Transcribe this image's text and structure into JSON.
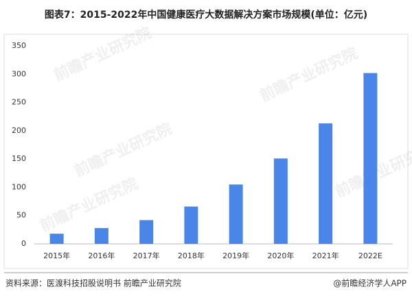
{
  "chart_data": {
    "type": "bar",
    "title": "图表7：2015-2022年中国健康医疗大数据解决方案市场规模(单位：亿元)",
    "categories": [
      "2015年",
      "2016年",
      "2017年",
      "2018年",
      "2019年",
      "2020年",
      "2021年",
      "2022E"
    ],
    "values": [
      18,
      28,
      42,
      66,
      105,
      151,
      213,
      302
    ],
    "color": "#4a86e8",
    "ylim": [
      0,
      350
    ],
    "yticks": [
      0,
      50,
      100,
      150,
      200,
      250,
      300,
      350
    ],
    "grid": false,
    "source": "资料来源：医渡科技招股说明书 前瞻产业研究院",
    "credit": "@前瞻经济学人APP",
    "watermark": "前瞻产业研究院"
  }
}
